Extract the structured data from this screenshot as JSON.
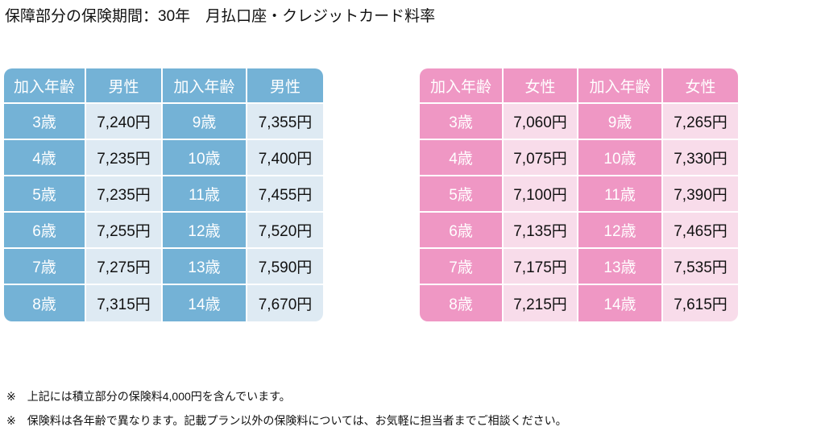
{
  "title": "保障部分の保険期間：30年　月払口座・クレジットカード料率",
  "colors": {
    "male_header": "#74b2d6",
    "male_cell": "#deeaf3",
    "female_header": "#ef97c4",
    "female_cell": "#f8dcea"
  },
  "male_table": {
    "headers": [
      "加入年齢",
      "男性",
      "加入年齢",
      "男性"
    ],
    "rows": [
      [
        "3歳",
        "7,240円",
        "9歳",
        "7,355円"
      ],
      [
        "4歳",
        "7,235円",
        "10歳",
        "7,400円"
      ],
      [
        "5歳",
        "7,235円",
        "11歳",
        "7,455円"
      ],
      [
        "6歳",
        "7,255円",
        "12歳",
        "7,520円"
      ],
      [
        "7歳",
        "7,275円",
        "13歳",
        "7,590円"
      ],
      [
        "8歳",
        "7,315円",
        "14歳",
        "7,670円"
      ]
    ]
  },
  "female_table": {
    "headers": [
      "加入年齢",
      "女性",
      "加入年齢",
      "女性"
    ],
    "rows": [
      [
        "3歳",
        "7,060円",
        "9歳",
        "7,265円"
      ],
      [
        "4歳",
        "7,075円",
        "10歳",
        "7,330円"
      ],
      [
        "5歳",
        "7,100円",
        "11歳",
        "7,390円"
      ],
      [
        "6歳",
        "7,135円",
        "12歳",
        "7,465円"
      ],
      [
        "7歳",
        "7,175円",
        "13歳",
        "7,535円"
      ],
      [
        "8歳",
        "7,215円",
        "14歳",
        "7,615円"
      ]
    ]
  },
  "notes": [
    "※　上記には積立部分の保険料4,000円を含んでいます。",
    "※　保険料は各年齢で異なります。記載プラン以外の保険料については、お気軽に担当者までご相談ください。"
  ]
}
